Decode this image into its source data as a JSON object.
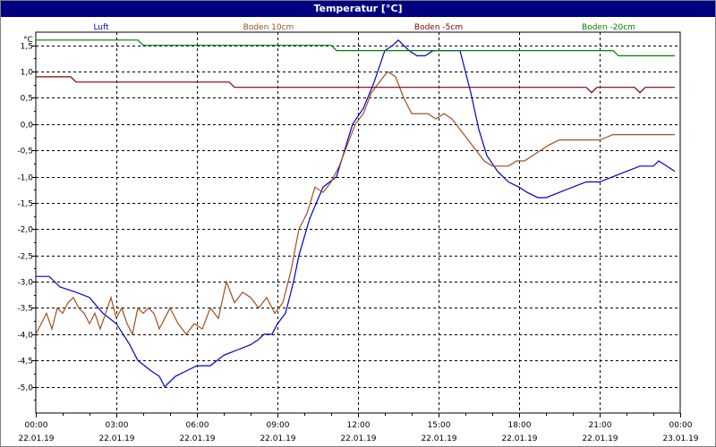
{
  "window": {
    "title": "Temperatur [°C]"
  },
  "chart_data": {
    "type": "line",
    "ylabel": "°C",
    "ylim": [
      -5.5,
      1.75
    ],
    "yticks": [
      1.5,
      1.0,
      0.5,
      0.0,
      -0.5,
      -1.0,
      -1.5,
      -2.0,
      -2.5,
      -3.0,
      -3.5,
      -4.0,
      -4.5,
      -5.0
    ],
    "ytick_labels": [
      "1,5",
      "1,0",
      "0,5",
      "0,0",
      "-0,5",
      "-1,0",
      "-1,5",
      "-2,0",
      "-2,5",
      "-3,0",
      "-3,5",
      "-4,0",
      "-4,5",
      "-5,0"
    ],
    "xlim": [
      0,
      24
    ],
    "xticks": [
      0,
      3,
      6,
      9,
      12,
      15,
      18,
      21,
      24
    ],
    "xtick_time_labels": [
      "00:00",
      "03:00",
      "06:00",
      "09:00",
      "12:00",
      "15:00",
      "18:00",
      "21:00",
      "00:00"
    ],
    "xtick_date_labels": [
      "22.01.19",
      "22.01.19",
      "22.01.19",
      "22.01.19",
      "22.01.19",
      "22.01.19",
      "22.01.19",
      "22.01.19",
      "23.01.19"
    ],
    "grid": true,
    "legend_position": "top",
    "series": [
      {
        "name": "Luft",
        "color": "#0000cc",
        "x": [
          0,
          0.5,
          0.9,
          1.5,
          2.0,
          2.5,
          3.0,
          3.5,
          3.8,
          4.3,
          4.6,
          4.8,
          5.2,
          5.6,
          6.0,
          6.5,
          7.0,
          7.5,
          8.0,
          8.3,
          8.5,
          8.8,
          9.0,
          9.3,
          9.6,
          9.8,
          10.2,
          10.7,
          11.2,
          11.5,
          11.8,
          12.2,
          12.6,
          13.0,
          13.3,
          13.5,
          13.7,
          13.9,
          14.2,
          14.5,
          14.8,
          15.3,
          15.8,
          16.2,
          16.5,
          16.8,
          17.2,
          17.6,
          18.0,
          18.3,
          18.7,
          19.0,
          19.5,
          20.0,
          20.5,
          21.0,
          21.5,
          22.0,
          22.5,
          23.0,
          23.2,
          23.5,
          23.8
        ],
        "y": [
          -2.9,
          -2.9,
          -3.1,
          -3.2,
          -3.3,
          -3.6,
          -3.8,
          -4.2,
          -4.5,
          -4.7,
          -4.8,
          -5.0,
          -4.8,
          -4.7,
          -4.6,
          -4.6,
          -4.4,
          -4.3,
          -4.2,
          -4.1,
          -4.0,
          -4.0,
          -3.8,
          -3.6,
          -3.0,
          -2.5,
          -1.8,
          -1.2,
          -1.0,
          -0.5,
          0.0,
          0.3,
          0.8,
          1.4,
          1.5,
          1.6,
          1.5,
          1.4,
          1.3,
          1.3,
          1.4,
          1.4,
          1.4,
          0.6,
          -0.1,
          -0.6,
          -0.9,
          -1.1,
          -1.2,
          -1.3,
          -1.4,
          -1.4,
          -1.3,
          -1.2,
          -1.1,
          -1.1,
          -1.0,
          -0.9,
          -0.8,
          -0.8,
          -0.7,
          -0.8,
          -0.9
        ]
      },
      {
        "name": "Boden 10cm",
        "color": "#a0501e",
        "x": [
          0,
          0.2,
          0.4,
          0.6,
          0.8,
          1.0,
          1.2,
          1.4,
          1.6,
          1.8,
          2.0,
          2.2,
          2.4,
          2.6,
          2.8,
          3.0,
          3.2,
          3.4,
          3.6,
          3.8,
          4.0,
          4.2,
          4.4,
          4.6,
          4.8,
          5.0,
          5.3,
          5.6,
          5.9,
          6.2,
          6.5,
          6.8,
          7.1,
          7.4,
          7.7,
          8.0,
          8.3,
          8.6,
          8.9,
          9.2,
          9.5,
          9.8,
          10.1,
          10.4,
          10.7,
          11.0,
          11.3,
          11.6,
          11.9,
          12.2,
          12.5,
          12.8,
          13.1,
          13.4,
          13.7,
          14.0,
          14.3,
          14.6,
          14.9,
          15.2,
          15.5,
          15.8,
          16.1,
          16.4,
          16.7,
          17.0,
          17.3,
          17.6,
          17.9,
          18.2,
          18.5,
          18.8,
          19.1,
          19.5,
          20.0,
          20.5,
          21.0,
          21.5,
          22.0,
          22.5,
          23.0,
          23.5,
          23.8
        ],
        "y": [
          -4.0,
          -3.8,
          -3.6,
          -3.9,
          -3.5,
          -3.6,
          -3.4,
          -3.3,
          -3.5,
          -3.6,
          -3.8,
          -3.6,
          -3.9,
          -3.6,
          -3.3,
          -3.7,
          -3.5,
          -3.8,
          -4.0,
          -3.5,
          -3.6,
          -3.5,
          -3.6,
          -3.9,
          -3.7,
          -3.5,
          -3.8,
          -4.0,
          -3.8,
          -3.9,
          -3.5,
          -3.7,
          -3.0,
          -3.4,
          -3.2,
          -3.3,
          -3.5,
          -3.3,
          -3.6,
          -3.4,
          -2.8,
          -2.0,
          -1.7,
          -1.2,
          -1.3,
          -1.1,
          -0.8,
          -0.4,
          0.0,
          0.2,
          0.6,
          0.8,
          1.0,
          0.9,
          0.5,
          0.2,
          0.2,
          0.2,
          0.1,
          0.2,
          0.1,
          -0.1,
          -0.3,
          -0.5,
          -0.7,
          -0.8,
          -0.8,
          -0.8,
          -0.7,
          -0.7,
          -0.6,
          -0.5,
          -0.4,
          -0.3,
          -0.3,
          -0.3,
          -0.3,
          -0.2,
          -0.2,
          -0.2,
          -0.2,
          -0.2,
          -0.2
        ]
      },
      {
        "name": "Boden -5cm",
        "color": "#800000",
        "x": [
          0,
          1.3,
          1.5,
          3.0,
          6.0,
          7.2,
          7.4,
          12.0,
          15.0,
          18.0,
          20.5,
          20.7,
          20.9,
          22.3,
          22.5,
          22.7,
          23.8
        ],
        "y": [
          0.9,
          0.9,
          0.8,
          0.8,
          0.8,
          0.8,
          0.7,
          0.7,
          0.7,
          0.7,
          0.7,
          0.6,
          0.7,
          0.7,
          0.6,
          0.7,
          0.7
        ]
      },
      {
        "name": "Boden -20cm",
        "color": "#008000",
        "x": [
          0,
          3.8,
          4.0,
          11.0,
          11.2,
          21.5,
          21.7,
          23.8
        ],
        "y": [
          1.6,
          1.6,
          1.5,
          1.5,
          1.4,
          1.4,
          1.3,
          1.3
        ]
      }
    ]
  }
}
